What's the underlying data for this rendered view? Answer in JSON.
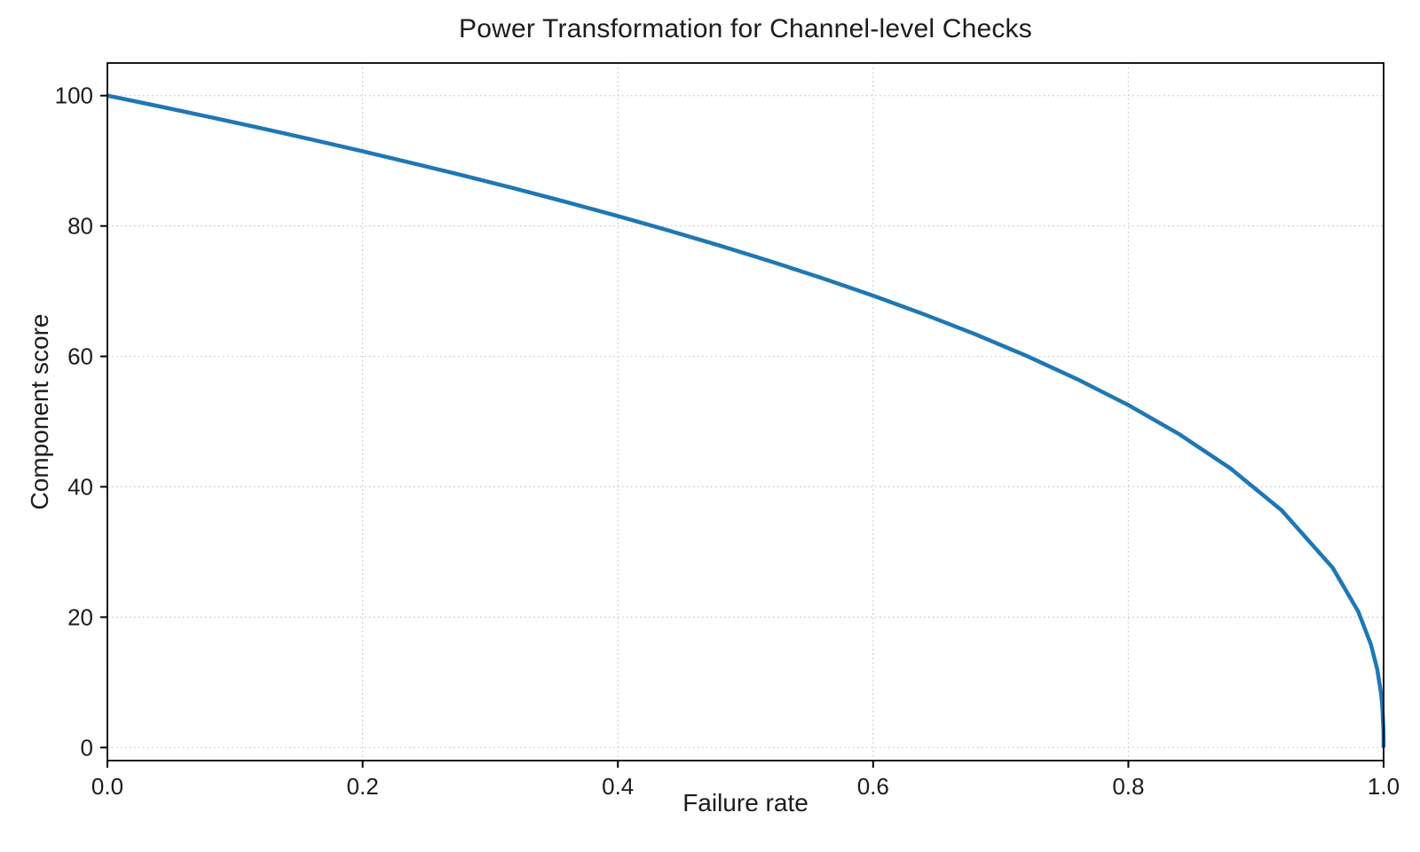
{
  "figure": {
    "background": "#ffffff",
    "text_color": "#1c1c1c",
    "grid_color": "#c9c9c9",
    "spine_color": "#000000"
  },
  "chart_data": {
    "type": "line",
    "title": "Power Transformation for Channel-level Checks",
    "xlabel": "Failure rate",
    "ylabel": "Component score",
    "xlim": [
      0.0,
      1.0
    ],
    "ylim": [
      -2,
      105
    ],
    "x_ticks": [
      0.0,
      0.2,
      0.4,
      0.6,
      0.8,
      1.0
    ],
    "x_tick_labels": [
      "0.0",
      "0.2",
      "0.4",
      "0.6",
      "0.8",
      "1.0"
    ],
    "y_ticks": [
      0,
      20,
      40,
      60,
      80,
      100
    ],
    "y_tick_labels": [
      "0",
      "20",
      "40",
      "60",
      "80",
      "100"
    ],
    "grid": "dotted",
    "legend_position": "none",
    "series": [
      {
        "name": "component-score-curve",
        "formula": "y = 100 * (1 - x)^0.4",
        "color": "#1f77b4",
        "line_width": 4.5,
        "x": [
          0,
          0.04,
          0.08,
          0.12,
          0.16,
          0.2,
          0.24,
          0.28,
          0.32,
          0.36,
          0.4,
          0.44,
          0.48,
          0.52,
          0.56,
          0.6,
          0.64,
          0.68,
          0.72,
          0.76,
          0.8,
          0.84,
          0.88,
          0.92,
          0.96,
          0.98,
          0.99,
          0.995,
          0.998,
          0.999,
          0.9999,
          1.0
        ],
        "y": [
          100,
          98.38,
          96.72,
          95.02,
          93.26,
          91.46,
          89.6,
          87.69,
          85.71,
          83.65,
          81.52,
          79.3,
          76.98,
          74.56,
          72.01,
          69.31,
          66.45,
          63.4,
          60.1,
          56.5,
          52.53,
          48.05,
          42.82,
          36.41,
          27.6,
          20.91,
          15.85,
          12.01,
          8.33,
          6.31,
          2.51,
          0
        ]
      }
    ]
  }
}
